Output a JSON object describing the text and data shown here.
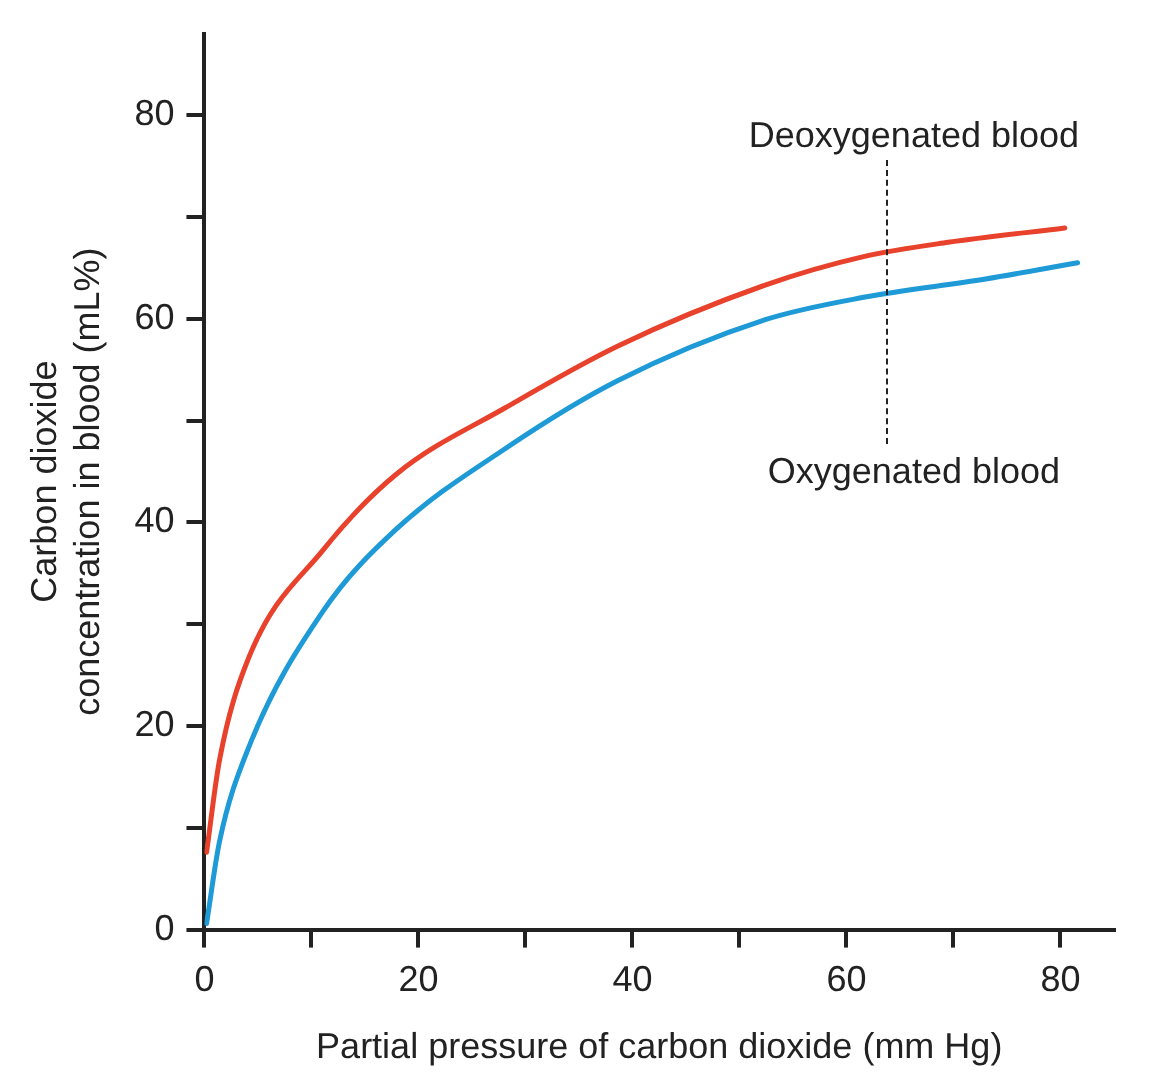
{
  "chart_data": {
    "type": "line",
    "xlabel": "Partial pressure of carbon dioxide (mm Hg)",
    "ylabel": "Carbon dioxide concentration in blood (mL%)",
    "xlim": [
      0,
      85
    ],
    "ylim": [
      0,
      88
    ],
    "xticks": [
      0,
      {
        "value": 10,
        "label": null
      },
      20,
      {
        "value": 30,
        "label": null
      },
      40,
      {
        "value": 50,
        "label": null
      },
      60,
      {
        "value": 70,
        "label": null
      },
      80
    ],
    "yticks": [
      0,
      {
        "value": 10,
        "label": null
      },
      20,
      {
        "value": 30,
        "label": null
      },
      40,
      {
        "value": 50,
        "label": null
      },
      60,
      {
        "value": 70,
        "label": null
      },
      80
    ],
    "grid": false,
    "legend": false,
    "marker": "none",
    "line_style": "solid",
    "series": [
      {
        "color": "#e8412c",
        "x": [
          0.2,
          1.4,
          4.1,
          11.1,
          17.9,
          28.2,
          38.6,
          52.4,
          61.6,
          69.5,
          80.4
        ],
        "values": [
          7.6,
          16.6,
          26.6,
          37.3,
          44.7,
          51.3,
          57.3,
          63.3,
          66.1,
          67.5,
          68.9
        ]
      },
      {
        "color": "#1e9ad6",
        "x": [
          0.2,
          1.4,
          4.1,
          11.1,
          17.9,
          28.2,
          38.6,
          52.4,
          61.6,
          73,
          81.6
        ],
        "values": [
          0.6,
          8.6,
          17.8,
          31.3,
          39.3,
          47.3,
          53.9,
          59.9,
          62.1,
          63.9,
          65.5
        ]
      }
    ],
    "annotations": [
      "Deoxygenated blood",
      "Oxygenated blood"
    ]
  }
}
